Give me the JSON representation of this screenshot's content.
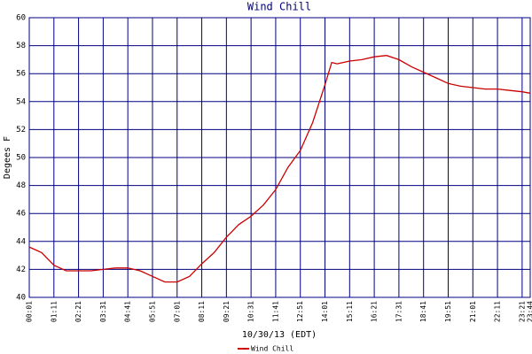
{
  "chart_data": {
    "type": "line",
    "title": "Wind Chill",
    "x_label": "10/30/13 (EDT)",
    "y_label": "Degees F",
    "x": [
      "00:01",
      "00:36",
      "01:11",
      "01:46",
      "02:21",
      "02:56",
      "03:31",
      "04:06",
      "04:41",
      "05:16",
      "05:51",
      "06:26",
      "07:01",
      "07:36",
      "08:11",
      "08:46",
      "09:21",
      "09:56",
      "10:31",
      "11:06",
      "11:41",
      "12:16",
      "12:51",
      "13:26",
      "14:01",
      "14:20",
      "14:36",
      "15:11",
      "15:46",
      "16:21",
      "16:56",
      "17:31",
      "18:06",
      "18:41",
      "19:16",
      "19:51",
      "20:26",
      "21:01",
      "21:36",
      "22:11",
      "22:46",
      "23:21",
      "23:44"
    ],
    "series": [
      {
        "name": "Wind Chill",
        "color": "#cc0000",
        "values": [
          43.6,
          43.2,
          42.3,
          41.9,
          41.9,
          41.9,
          42.0,
          42.1,
          42.1,
          41.9,
          41.5,
          41.1,
          41.1,
          41.5,
          42.4,
          43.2,
          44.3,
          45.2,
          45.8,
          46.6,
          47.7,
          49.3,
          50.5,
          52.5,
          55.2,
          56.8,
          56.7,
          56.9,
          57.0,
          57.2,
          57.3,
          57.0,
          56.5,
          56.1,
          55.7,
          55.3,
          55.1,
          55.0,
          54.9,
          54.9,
          54.8,
          54.7,
          54.6
        ]
      }
    ],
    "xticks": [
      "00:01",
      "01:11",
      "02:21",
      "03:31",
      "04:41",
      "05:51",
      "07:01",
      "08:11",
      "09:21",
      "10:31",
      "11:41",
      "12:51",
      "14:01",
      "15:11",
      "16:21",
      "17:31",
      "18:41",
      "19:51",
      "21:01",
      "22:11",
      "23:21",
      "23:44"
    ],
    "ylim": [
      40,
      60
    ],
    "yticks": [
      40,
      42,
      44,
      46,
      48,
      50,
      52,
      54,
      56,
      58,
      60
    ],
    "grid": true
  }
}
